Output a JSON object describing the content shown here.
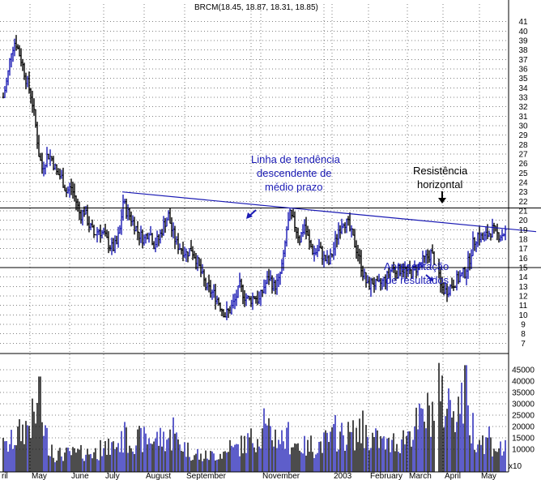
{
  "chart_data": {
    "type": "ohlc-bar",
    "title": "BRCM(18.45, 18.87, 18.31, 18.85)",
    "price_axis": {
      "min": 6,
      "max": 42,
      "ticks": [
        7,
        8,
        9,
        10,
        11,
        12,
        13,
        14,
        15,
        16,
        17,
        18,
        19,
        20,
        21,
        22,
        23,
        24,
        25,
        26,
        27,
        28,
        29,
        30,
        31,
        32,
        33,
        34,
        35,
        36,
        37,
        38,
        39,
        40,
        41
      ]
    },
    "volume_axis": {
      "min": 0,
      "max": 50000,
      "ticks": [
        10000,
        15000,
        20000,
        25000,
        30000,
        35000,
        40000,
        45000
      ],
      "ticks_10k": [
        10000,
        15000,
        20000,
        25000,
        30000,
        35000,
        40000,
        45000
      ],
      "unit_label": "x10"
    },
    "grid": true,
    "x_labels": [
      "ril",
      "May",
      "June",
      "July",
      "August",
      "September",
      "",
      "November",
      "",
      "2003",
      "February",
      "March",
      "April",
      "May"
    ],
    "horizontal_lines": [
      21.3,
      15.0
    ],
    "trendline": {
      "from": {
        "day": 147,
        "price": 23.0
      },
      "to": {
        "day": 658,
        "price": 18.8
      }
    },
    "price_keypoints": [
      [
        0,
        33
      ],
      [
        5,
        35
      ],
      [
        10,
        38
      ],
      [
        15,
        39
      ],
      [
        22,
        37
      ],
      [
        28,
        35
      ],
      [
        35,
        33
      ],
      [
        40,
        30
      ],
      [
        44,
        27
      ],
      [
        48,
        25.5
      ],
      [
        55,
        27
      ],
      [
        60,
        26.5
      ],
      [
        66,
        25
      ],
      [
        72,
        24.5
      ],
      [
        78,
        23
      ],
      [
        84,
        23.5
      ],
      [
        90,
        22
      ],
      [
        95,
        20.5
      ],
      [
        100,
        21
      ],
      [
        106,
        19.5
      ],
      [
        112,
        18.5
      ],
      [
        118,
        19
      ],
      [
        124,
        18.5
      ],
      [
        130,
        17.5
      ],
      [
        135,
        17
      ],
      [
        140,
        17.5
      ],
      [
        144,
        19
      ],
      [
        148,
        22
      ],
      [
        152,
        21
      ],
      [
        156,
        20.5
      ],
      [
        162,
        19.5
      ],
      [
        168,
        18.5
      ],
      [
        174,
        18
      ],
      [
        180,
        19
      ],
      [
        186,
        17.5
      ],
      [
        192,
        18
      ],
      [
        198,
        19.5
      ],
      [
        204,
        20.5
      ],
      [
        208,
        19
      ],
      [
        214,
        17.5
      ],
      [
        220,
        17
      ],
      [
        226,
        16.5
      ],
      [
        232,
        17
      ],
      [
        238,
        16
      ],
      [
        244,
        14.5
      ],
      [
        250,
        13
      ],
      [
        256,
        12.5
      ],
      [
        262,
        12
      ],
      [
        268,
        11
      ],
      [
        274,
        10
      ],
      [
        280,
        10.5
      ],
      [
        286,
        11.5
      ],
      [
        292,
        13
      ],
      [
        298,
        12
      ],
      [
        304,
        11.5
      ],
      [
        310,
        12
      ],
      [
        316,
        11.5
      ],
      [
        322,
        13
      ],
      [
        328,
        14
      ],
      [
        334,
        13
      ],
      [
        340,
        13.5
      ],
      [
        346,
        16
      ],
      [
        350,
        19
      ],
      [
        354,
        20.5
      ],
      [
        360,
        19.5
      ],
      [
        366,
        18
      ],
      [
        372,
        19.5
      ],
      [
        378,
        17.5
      ],
      [
        384,
        16.5
      ],
      [
        390,
        17
      ],
      [
        396,
        16
      ],
      [
        402,
        15.5
      ],
      [
        408,
        17
      ],
      [
        414,
        19
      ],
      [
        420,
        20
      ],
      [
        426,
        19.5
      ],
      [
        432,
        18
      ],
      [
        438,
        16.5
      ],
      [
        444,
        14.5
      ],
      [
        450,
        13
      ],
      [
        456,
        13.5
      ],
      [
        462,
        13
      ],
      [
        468,
        13.5
      ],
      [
        474,
        14
      ],
      [
        480,
        15
      ],
      [
        486,
        14.5
      ],
      [
        492,
        15
      ],
      [
        498,
        14.5
      ],
      [
        504,
        14.5
      ],
      [
        510,
        15
      ],
      [
        516,
        15.5
      ],
      [
        522,
        16
      ],
      [
        528,
        16.5
      ],
      [
        534,
        15.5
      ],
      [
        540,
        13
      ],
      [
        546,
        12.5
      ],
      [
        552,
        13
      ],
      [
        558,
        13.5
      ],
      [
        564,
        14
      ],
      [
        570,
        14.5
      ],
      [
        576,
        16
      ],
      [
        580,
        17.5
      ],
      [
        586,
        18.5
      ],
      [
        592,
        18
      ],
      [
        598,
        18.5
      ],
      [
        604,
        19
      ],
      [
        610,
        18.5
      ],
      [
        616,
        18.5
      ],
      [
        620,
        18.8
      ]
    ],
    "volume_keypoints": [
      [
        0,
        15000
      ],
      [
        45,
        42000
      ],
      [
        60,
        12000
      ],
      [
        120,
        14000
      ],
      [
        150,
        22000
      ],
      [
        210,
        24000
      ],
      [
        240,
        10000
      ],
      [
        280,
        14000
      ],
      [
        322,
        28000
      ],
      [
        352,
        22000
      ],
      [
        380,
        16000
      ],
      [
        410,
        25000
      ],
      [
        444,
        27000
      ],
      [
        482,
        17000
      ],
      [
        537,
        48000
      ],
      [
        571,
        47000
      ],
      [
        580,
        26000
      ],
      [
        600,
        20000
      ],
      [
        620,
        14000
      ]
    ]
  },
  "annotations": {
    "trend_label": [
      "Linha de tendência",
      "descendente de",
      "médio prazo"
    ],
    "resistance_label": [
      "Resistência",
      "horizontal"
    ],
    "results_label": [
      "Apresentação",
      "de resultados"
    ]
  },
  "colors": {
    "up": "#1a1ab4",
    "down": "#000000",
    "grid": "#000000",
    "line": "#1a1ab4",
    "annotation": "#1a1ab4"
  }
}
